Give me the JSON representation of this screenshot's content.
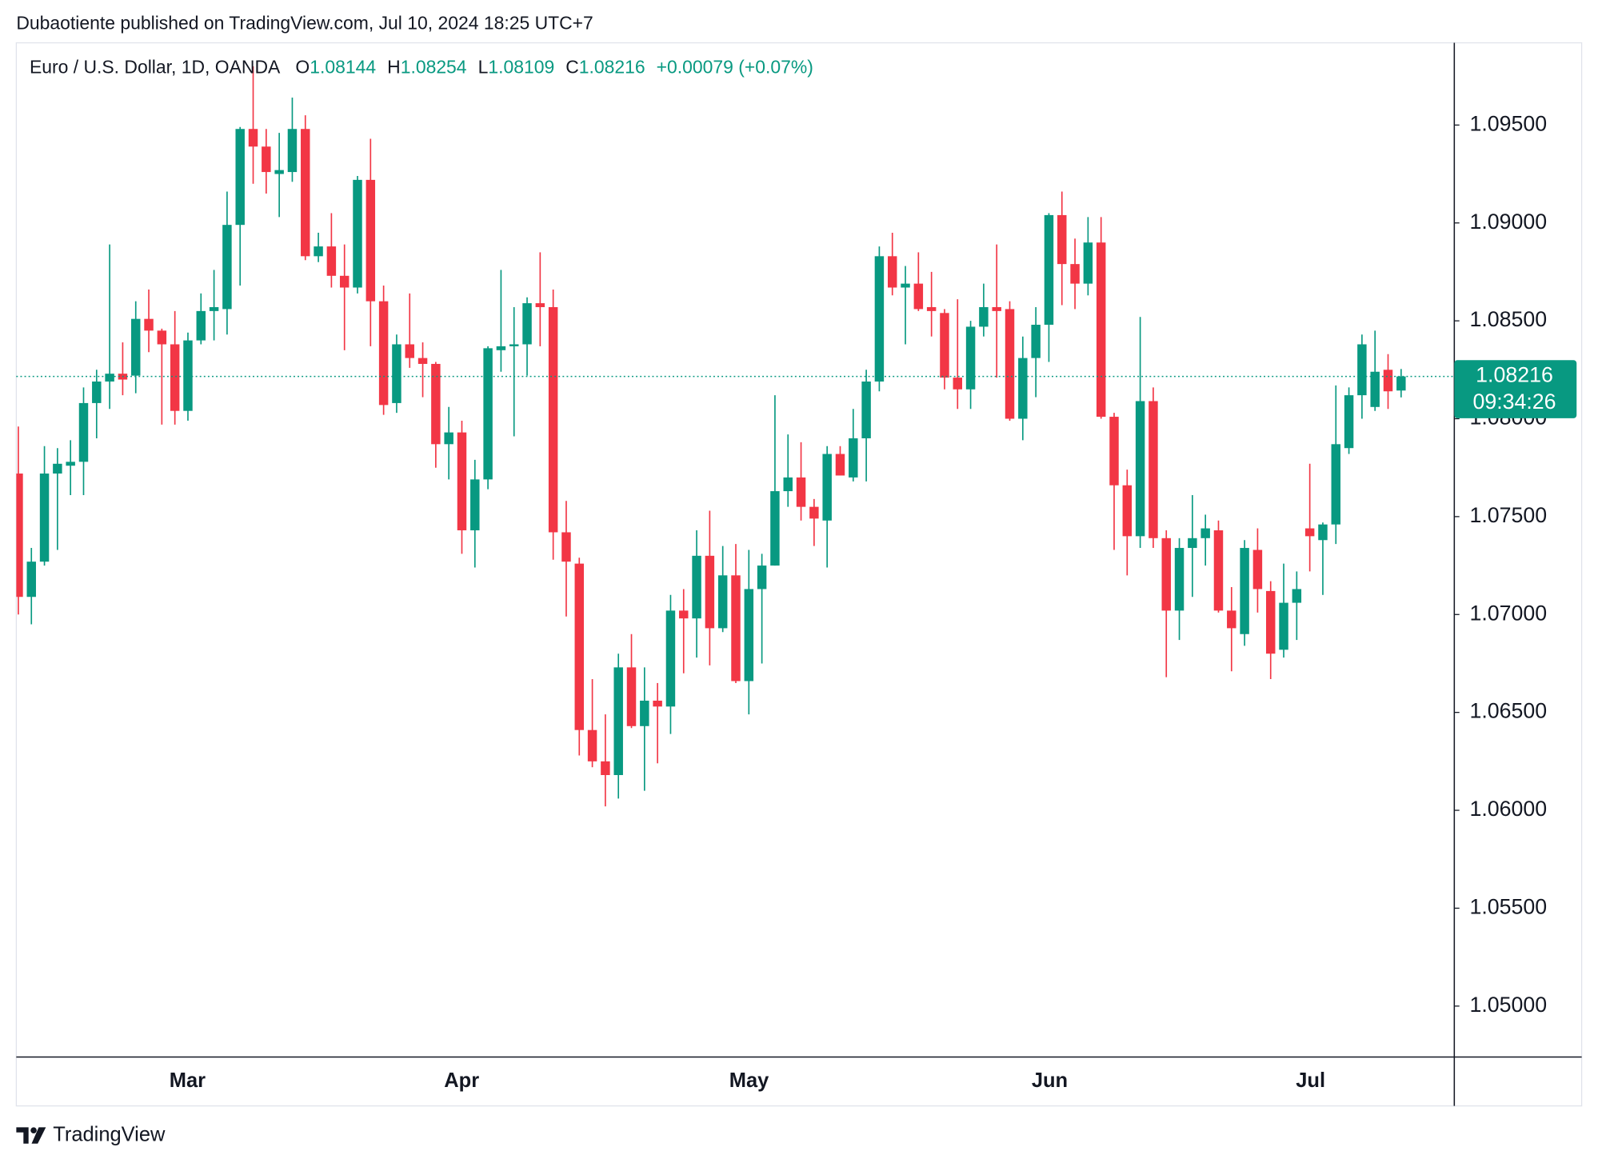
{
  "header": "Dubaotiente published on TradingView.com, Jul 10, 2024 18:25 UTC+7",
  "footer_brand": "TradingView",
  "chart_data": {
    "type": "candlestick",
    "title": "Euro / U.S. Dollar, 1D, OANDA",
    "legend_prefixes": [
      "O",
      "H",
      "L",
      "C"
    ],
    "change_label": "+0.00079 (+0.07%)",
    "countdown": "09:34:26",
    "up_color": "#089981",
    "down_color": "#f23645",
    "x_labels": [
      "Mar",
      "Apr",
      "May",
      "Jun",
      "Jul"
    ],
    "ylim": [
      1.0474,
      1.0992
    ],
    "yticks": [
      {
        "value": 1.05,
        "label": "1.05000"
      },
      {
        "value": 1.055,
        "label": "1.05500"
      },
      {
        "value": 1.06,
        "label": "1.06000"
      },
      {
        "value": 1.065,
        "label": "1.06500"
      },
      {
        "value": 1.07,
        "label": "1.07000"
      },
      {
        "value": 1.075,
        "label": "1.07500"
      },
      {
        "value": 1.08,
        "label": "1.08000"
      },
      {
        "value": 1.085,
        "label": "1.08500"
      },
      {
        "value": 1.09,
        "label": "1.09000"
      },
      {
        "value": 1.095,
        "label": "1.09500"
      }
    ],
    "open": [
      1.0772,
      1.0709,
      1.0727,
      1.0772,
      1.0776,
      1.0778,
      1.0808,
      1.0819,
      1.0823,
      1.0822,
      1.0851,
      1.0845,
      1.0838,
      1.0804,
      1.084,
      1.0855,
      1.0856,
      1.0899,
      1.0948,
      1.0939,
      1.0925,
      1.0926,
      1.0948,
      1.0883,
      1.0888,
      1.0873,
      1.0867,
      1.0922,
      1.086,
      1.0808,
      1.0838,
      1.0831,
      1.0828,
      1.0787,
      1.0793,
      1.0743,
      1.0769,
      1.0835,
      1.0837,
      1.0838,
      1.0859,
      1.0857,
      1.0742,
      1.0726,
      1.0641,
      1.0625,
      1.0618,
      1.0673,
      1.0643,
      1.0656,
      1.0653,
      1.0702,
      1.0698,
      1.073,
      1.0693,
      1.072,
      1.0666,
      1.0713,
      1.0725,
      1.0763,
      1.077,
      1.0755,
      1.0748,
      1.0782,
      1.077,
      1.079,
      1.0819,
      1.0883,
      1.0867,
      1.0869,
      1.0857,
      1.0854,
      1.0821,
      1.0815,
      1.0847,
      1.0857,
      1.0856,
      1.08,
      1.0831,
      1.0848,
      1.0904,
      1.0879,
      1.0869,
      1.089,
      1.0801,
      1.0766,
      1.074,
      1.0809,
      1.0739,
      1.0702,
      1.0734,
      1.0739,
      1.0743,
      1.0702,
      1.069,
      1.0733,
      1.0712,
      1.0682,
      1.0706,
      1.0744,
      1.0738,
      1.0746,
      1.0785,
      1.0812,
      1.0806,
      1.0825,
      1.08144
    ],
    "high": [
      1.0796,
      1.0734,
      1.0786,
      1.0785,
      1.0789,
      1.0816,
      1.0825,
      1.0889,
      1.0839,
      1.086,
      1.0866,
      1.0846,
      1.0855,
      1.0844,
      1.0864,
      1.0876,
      1.0916,
      1.0949,
      1.098,
      1.0948,
      1.0946,
      1.0964,
      1.0955,
      1.0895,
      1.0905,
      1.0889,
      1.0924,
      1.0943,
      1.0868,
      1.0843,
      1.0864,
      1.0839,
      1.0829,
      1.0806,
      1.0799,
      1.0779,
      1.0837,
      1.0876,
      1.0857,
      1.0862,
      1.0885,
      1.0866,
      1.0758,
      1.0729,
      1.0667,
      1.0649,
      1.068,
      1.069,
      1.0673,
      1.0665,
      1.071,
      1.0713,
      1.0743,
      1.0753,
      1.0735,
      1.0736,
      1.0733,
      1.0731,
      1.0812,
      1.0792,
      1.0788,
      1.0759,
      1.0786,
      1.0786,
      1.0805,
      1.0825,
      1.0888,
      1.0895,
      1.0878,
      1.0885,
      1.0875,
      1.0856,
      1.0861,
      1.085,
      1.0869,
      1.0889,
      1.086,
      1.0842,
      1.0857,
      1.0905,
      1.0916,
      1.0892,
      1.0903,
      1.0903,
      1.0803,
      1.0774,
      1.0852,
      1.0816,
      1.0743,
      1.0739,
      1.0761,
      1.0751,
      1.0748,
      1.0714,
      1.0738,
      1.0744,
      1.0717,
      1.0726,
      1.0722,
      1.0777,
      1.0747,
      1.0817,
      1.0816,
      1.0843,
      1.0845,
      1.0833,
      1.08254
    ],
    "low": [
      1.07,
      1.0695,
      1.0725,
      1.0733,
      1.0761,
      1.0761,
      1.079,
      1.0805,
      1.0812,
      1.0813,
      1.0834,
      1.0797,
      1.0797,
      1.0799,
      1.0838,
      1.084,
      1.0843,
      1.0868,
      1.092,
      1.0915,
      1.0903,
      1.0921,
      1.0881,
      1.088,
      1.0867,
      1.0835,
      1.0864,
      1.0837,
      1.0802,
      1.0803,
      1.0826,
      1.0811,
      1.0775,
      1.0769,
      1.0731,
      1.0724,
      1.0764,
      1.0824,
      1.0791,
      1.0822,
      1.0837,
      1.0728,
      1.0699,
      1.0628,
      1.0622,
      1.0602,
      1.0606,
      1.0642,
      1.061,
      1.0624,
      1.0639,
      1.067,
      1.0678,
      1.0674,
      1.0691,
      1.0665,
      1.0649,
      1.0675,
      1.0725,
      1.0755,
      1.0748,
      1.0735,
      1.0724,
      1.0771,
      1.0768,
      1.0768,
      1.0814,
      1.0863,
      1.0838,
      1.0855,
      1.0842,
      1.0815,
      1.0805,
      1.0805,
      1.0842,
      1.0821,
      1.0799,
      1.0789,
      1.0811,
      1.0829,
      1.0858,
      1.0856,
      1.0863,
      1.08,
      1.0733,
      1.072,
      1.0734,
      1.0734,
      1.0668,
      1.0687,
      1.0709,
      1.0725,
      1.0701,
      1.0671,
      1.0684,
      1.0701,
      1.0667,
      1.0678,
      1.0687,
      1.0722,
      1.071,
      1.0736,
      1.0782,
      1.08,
      1.0804,
      1.0805,
      1.08109
    ],
    "close": [
      1.0709,
      1.0727,
      1.0772,
      1.0777,
      1.0778,
      1.0808,
      1.0819,
      1.0823,
      1.082,
      1.0851,
      1.0845,
      1.0838,
      1.0804,
      1.084,
      1.0855,
      1.0857,
      1.0899,
      1.0948,
      1.0939,
      1.0926,
      1.0927,
      1.0948,
      1.0883,
      1.0888,
      1.0873,
      1.0867,
      1.0922,
      1.086,
      1.0807,
      1.0838,
      1.0831,
      1.0828,
      1.0787,
      1.0793,
      1.0743,
      1.0769,
      1.0836,
      1.0837,
      1.0838,
      1.0859,
      1.0857,
      1.0742,
      1.0727,
      1.0641,
      1.0625,
      1.0618,
      1.0673,
      1.0643,
      1.0656,
      1.0653,
      1.0702,
      1.0698,
      1.073,
      1.0693,
      1.072,
      1.0666,
      1.0713,
      1.0725,
      1.0763,
      1.077,
      1.0755,
      1.0749,
      1.0782,
      1.0771,
      1.079,
      1.0819,
      1.0883,
      1.0867,
      1.0869,
      1.0856,
      1.0855,
      1.0821,
      1.0815,
      1.0847,
      1.0857,
      1.0855,
      1.08,
      1.0831,
      1.0848,
      1.0904,
      1.0879,
      1.0869,
      1.089,
      1.0801,
      1.0766,
      1.074,
      1.0809,
      1.0739,
      1.0702,
      1.0734,
      1.0739,
      1.0744,
      1.0702,
      1.0693,
      1.0734,
      1.0713,
      1.068,
      1.0706,
      1.0713,
      1.074,
      1.0746,
      1.0787,
      1.0812,
      1.0838,
      1.0824,
      1.0814,
      1.08216
    ]
  }
}
